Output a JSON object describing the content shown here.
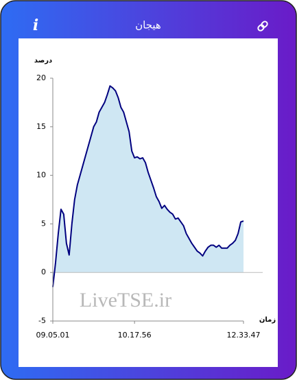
{
  "header": {
    "title": "هیجان",
    "info": "i"
  },
  "chart_data": {
    "type": "area",
    "y_label": "درصد",
    "x_label": "زمان",
    "watermark": "LiveTSE.ir",
    "values": [
      -1.5,
      1,
      4,
      6.5,
      6,
      3,
      1.8,
      5,
      7.5,
      9,
      10,
      11,
      12,
      13,
      14,
      15,
      15.5,
      16.5,
      17,
      17.5,
      18.3,
      19.2,
      19,
      18.7,
      18,
      17,
      16.5,
      15.5,
      14.5,
      12.5,
      11.8,
      11.9,
      11.7,
      11.8,
      11.3,
      10.3,
      9.5,
      8.7,
      7.8,
      7.3,
      6.6,
      6.9,
      6.5,
      6.2,
      6,
      5.5,
      5.6,
      5.2,
      4.8,
      4,
      3.5,
      3,
      2.6,
      2.2,
      2,
      1.7,
      2.2,
      2.6,
      2.8,
      2.8,
      2.6,
      2.8,
      2.5,
      2.5,
      2.5,
      2.8,
      3,
      3.3,
      4,
      5.2,
      5.3
    ],
    "color": "#00007f",
    "fill": "#cfe7f3",
    "xlim": [
      0,
      70
    ],
    "xticks": [
      {
        "value": 0,
        "label": "09.05.01"
      },
      {
        "value": 30,
        "label": "10.17.56"
      },
      {
        "value": 70,
        "label": "12.33.47"
      }
    ],
    "ylim": [
      -5,
      20
    ],
    "yticks": [
      -5,
      0,
      5,
      10,
      15,
      20
    ]
  }
}
